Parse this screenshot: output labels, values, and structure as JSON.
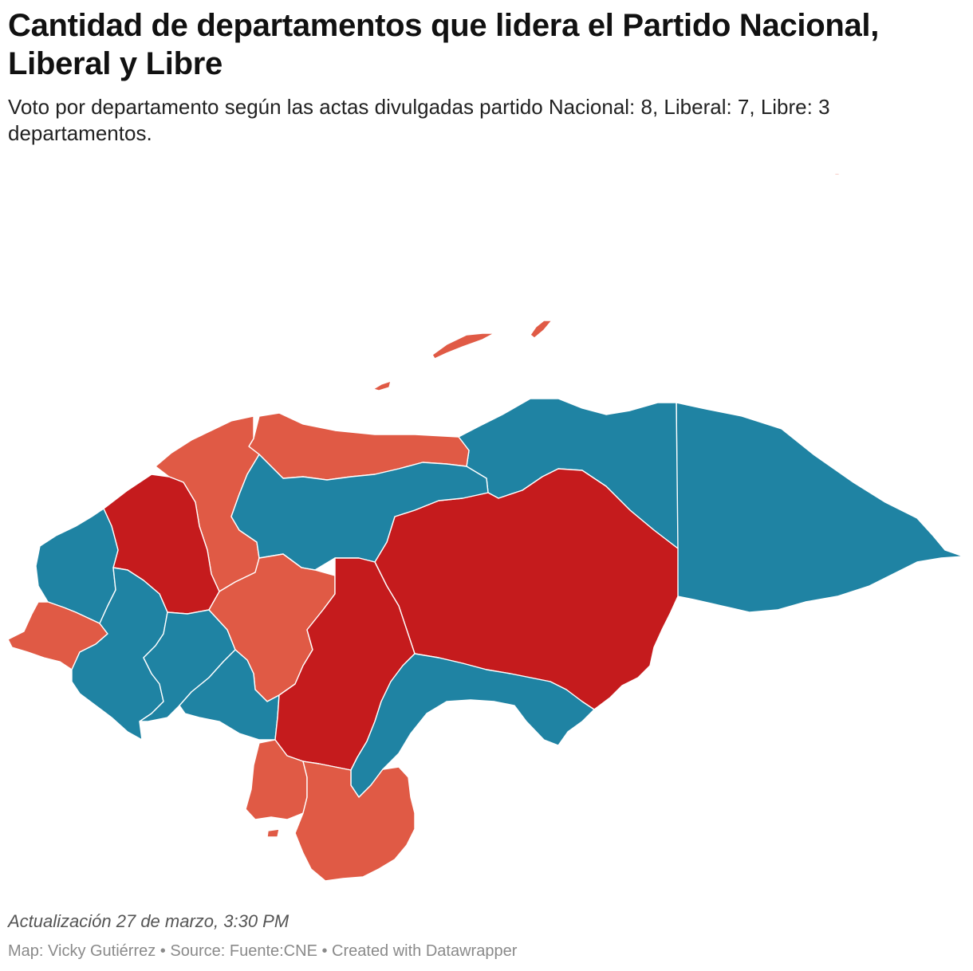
{
  "title": "Cantidad de departamentos que lidera el Partido Nacional, Liberal y Libre",
  "subtitle": "Voto por departamento según las actas divulgadas partido Nacional: 8, Liberal: 7, Libre: 3 departamentos.",
  "notes": "Actualización 27 de marzo, 3:30 PM",
  "byline": {
    "map_credit": "Map: Vicky Gutiérrez",
    "source": "Source: Fuente:CNE",
    "created": "Created with Datawrapper",
    "separator": " • "
  },
  "colors": {
    "nacional": "#1f83a3",
    "liberal": "#e05a45",
    "libre": "#c51b1d",
    "border": "#ffffff"
  },
  "departments": [
    {
      "id": "gracias-a-dios",
      "party": "nacional"
    },
    {
      "id": "colon",
      "party": "nacional"
    },
    {
      "id": "olancho",
      "party": "libre"
    },
    {
      "id": "atlantida",
      "party": "liberal"
    },
    {
      "id": "islas-de-la-bahia",
      "party": "liberal"
    },
    {
      "id": "cortes",
      "party": "liberal"
    },
    {
      "id": "yoro",
      "party": "nacional"
    },
    {
      "id": "santa-barbara",
      "party": "libre"
    },
    {
      "id": "copan",
      "party": "nacional"
    },
    {
      "id": "ocotepeque",
      "party": "liberal"
    },
    {
      "id": "lempira",
      "party": "nacional"
    },
    {
      "id": "intibuca",
      "party": "nacional"
    },
    {
      "id": "comayagua",
      "party": "liberal"
    },
    {
      "id": "la-paz",
      "party": "nacional"
    },
    {
      "id": "francisco-morazan",
      "party": "libre"
    },
    {
      "id": "el-paraiso",
      "party": "nacional"
    },
    {
      "id": "valle",
      "party": "liberal"
    },
    {
      "id": "choluteca",
      "party": "liberal"
    }
  ]
}
